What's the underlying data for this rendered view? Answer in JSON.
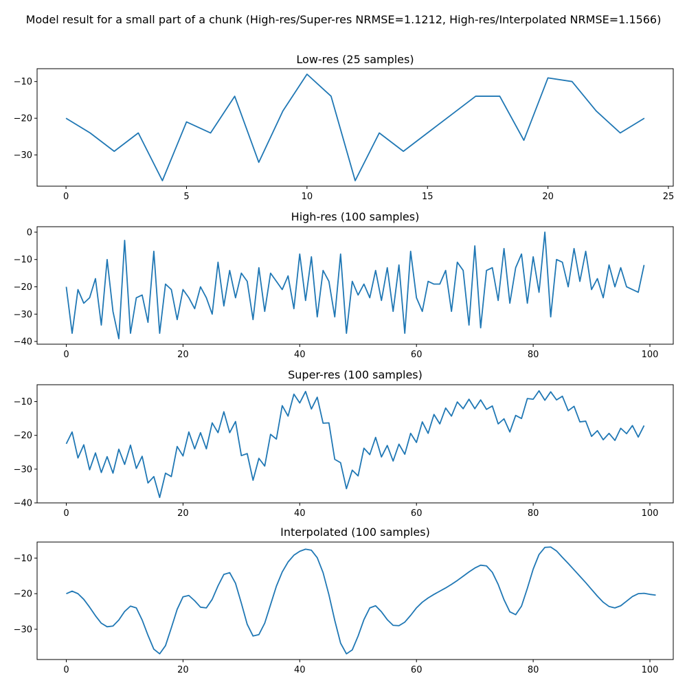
{
  "figure": {
    "title": "Model result for a small part of a chunk (High-res/Super-res NRMSE=1.1212, High-res/Interpolated NRMSE=1.1566)",
    "line_color": "#1f77b4"
  },
  "chart_data": [
    {
      "type": "line",
      "title": "Low-res (25 samples)",
      "xlim": [
        -1.2,
        25.2
      ],
      "ylim": [
        -38.5,
        -6.5
      ],
      "xticks": [
        0,
        5,
        10,
        15,
        20,
        25
      ],
      "xtick_labels": [
        "0",
        "5",
        "10",
        "15",
        "20",
        "25"
      ],
      "yticks": [
        -10,
        -20,
        -30
      ],
      "ytick_labels": [
        "−10",
        "−20",
        "−30"
      ],
      "values": [
        -20,
        -24,
        -29,
        -24,
        -37,
        -21,
        -24,
        -14,
        -32,
        -18,
        -8,
        -14,
        -37,
        -24,
        -29,
        -24,
        -19,
        -14,
        -14,
        -26,
        -9,
        -10,
        -18,
        -24,
        -20
      ]
    },
    {
      "type": "line",
      "title": "High-res (100 samples)",
      "xlim": [
        -5,
        104
      ],
      "ylim": [
        -41,
        2
      ],
      "xticks": [
        0,
        20,
        40,
        60,
        80,
        100
      ],
      "xtick_labels": [
        "0",
        "20",
        "40",
        "60",
        "80",
        "100"
      ],
      "yticks": [
        0,
        -10,
        -20,
        -30,
        -40
      ],
      "ytick_labels": [
        "0",
        "−10",
        "−20",
        "−30",
        "−40"
      ],
      "values": [
        -20,
        -37,
        -21,
        -26,
        -24,
        -17,
        -34,
        -10,
        -29,
        -39,
        -3,
        -37,
        -24,
        -23,
        -33,
        -7,
        -37,
        -19,
        -21,
        -32,
        -21,
        -24,
        -28,
        -20,
        -24,
        -30,
        -11,
        -27,
        -14,
        -24,
        -15,
        -18,
        -32,
        -13,
        -29,
        -15,
        -18,
        -21,
        -16,
        -28,
        -8,
        -25,
        -9,
        -31,
        -14,
        -18,
        -31,
        -8,
        -37,
        -18,
        -23,
        -19,
        -24,
        -14,
        -25,
        -13,
        -29,
        -12,
        -37,
        -7,
        -24,
        -29,
        -18,
        -19,
        -19,
        -14,
        -29,
        -11,
        -14,
        -34,
        -5,
        -35,
        -14,
        -13,
        -25,
        -6,
        -26,
        -13,
        -8,
        -26,
        -9,
        -22,
        0,
        -31,
        -10,
        -11,
        -20,
        -6,
        -18,
        -7,
        -21,
        -17,
        -24,
        -12,
        -20,
        -13,
        -20,
        -21,
        -22,
        -12
      ]
    },
    {
      "type": "line",
      "title": "Super-res (100 samples)",
      "xlim": [
        -5,
        104
      ],
      "ylim": [
        -40,
        -5
      ],
      "xticks": [
        0,
        20,
        40,
        60,
        80,
        100
      ],
      "xtick_labels": [
        "0",
        "20",
        "40",
        "60",
        "80",
        "100"
      ],
      "yticks": [
        -10,
        -20,
        -30,
        -40
      ],
      "ytick_labels": [
        "−10",
        "−20",
        "−30",
        "−40"
      ],
      "values": [
        -22.5,
        -19,
        -26.7,
        -22.8,
        -30.2,
        -25.2,
        -31,
        -26.3,
        -31.2,
        -24.1,
        -28.6,
        -22.9,
        -29.8,
        -26.2,
        -34.1,
        -32.2,
        -38.4,
        -31.2,
        -32.2,
        -23.3,
        -26.1,
        -19,
        -24,
        -19.2,
        -24,
        -16.3,
        -19.2,
        -13,
        -19.2,
        -15.9,
        -26,
        -25.4,
        -33.3,
        -26.8,
        -29.1,
        -19.7,
        -21.1,
        -11.2,
        -14.3,
        -7.8,
        -10.4,
        -7,
        -12.2,
        -8.7,
        -16.4,
        -16.3,
        -27.1,
        -28.1,
        -35.8,
        -30.3,
        -32,
        -23.8,
        -25.7,
        -20.6,
        -26.4,
        -23,
        -27.6,
        -22.6,
        -25.6,
        -19.4,
        -22.1,
        -16,
        -19.4,
        -13.8,
        -16.6,
        -11.9,
        -14.3,
        -10.1,
        -12.1,
        -9.3,
        -12.1,
        -9.5,
        -12.3,
        -11.3,
        -16.6,
        -15.1,
        -19,
        -14.1,
        -15,
        -9.1,
        -9.3,
        -6.8,
        -9.6,
        -7.1,
        -9.5,
        -8.4,
        -12.7,
        -11.4,
        -16,
        -15.8,
        -20.3,
        -18.6,
        -21.3,
        -19.4,
        -21.5,
        -17.9,
        -19.5,
        -17.1,
        -20.5,
        -17.1
      ]
    },
    {
      "type": "line",
      "title": "Interpolated (100 samples)",
      "xlim": [
        -5,
        104
      ],
      "ylim": [
        -38.5,
        -5.5
      ],
      "xticks": [
        0,
        20,
        40,
        60,
        80,
        100
      ],
      "xtick_labels": [
        "0",
        "20",
        "40",
        "60",
        "80",
        "100"
      ],
      "yticks": [
        -10,
        -20,
        -30
      ],
      "ytick_labels": [
        "−10",
        "−20",
        "−30"
      ],
      "values": [
        -20,
        -19.3,
        -20,
        -21.6,
        -23.8,
        -26.2,
        -28.3,
        -29.3,
        -29.1,
        -27.4,
        -25,
        -23.5,
        -24,
        -27.4,
        -31.7,
        -35.6,
        -36.9,
        -34.6,
        -29.6,
        -24.4,
        -20.9,
        -20.5,
        -22,
        -23.8,
        -24,
        -21.6,
        -17.8,
        -14.6,
        -14.1,
        -17.1,
        -22.7,
        -28.6,
        -31.9,
        -31.5,
        -28.3,
        -23.1,
        -17.9,
        -13.9,
        -11.1,
        -9.2,
        -8.1,
        -7.5,
        -7.8,
        -9.9,
        -14.1,
        -20.3,
        -27.5,
        -33.9,
        -36.9,
        -35.8,
        -31.9,
        -27.3,
        -24,
        -23.4,
        -25.1,
        -27.3,
        -28.9,
        -29,
        -28,
        -26.1,
        -24,
        -22.4,
        -21.2,
        -20.2,
        -19.3,
        -18.4,
        -17.4,
        -16.3,
        -15.1,
        -13.9,
        -12.8,
        -12,
        -12.2,
        -14,
        -17.4,
        -21.7,
        -25.1,
        -25.9,
        -23.5,
        -18.5,
        -13.1,
        -9,
        -7,
        -6.9,
        -8,
        -9.8,
        -11.5,
        -13.3,
        -15.1,
        -16.9,
        -18.8,
        -20.7,
        -22.4,
        -23.6,
        -24,
        -23.4,
        -22.1,
        -20.8,
        -20,
        -19.9,
        -20.2,
        -20.4
      ]
    }
  ]
}
